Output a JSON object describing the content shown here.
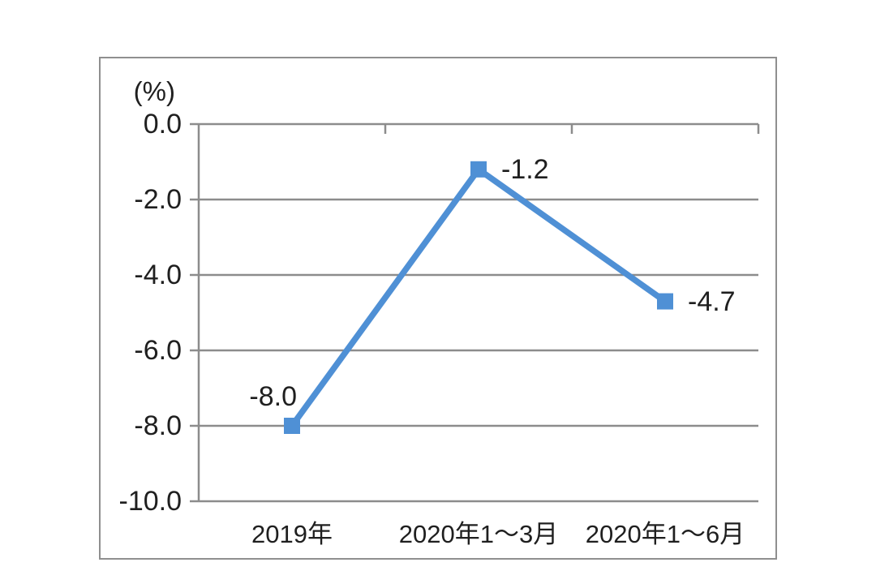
{
  "chart": {
    "colors": {
      "line": "#4f90d5",
      "marker": "#4f90d5",
      "grid": "#8c8c8c",
      "axis": "#8c8c8c",
      "border": "#8f8f8f",
      "text": "#1f1f1f",
      "background": "#ffffff"
    }
  },
  "chart_data": {
    "type": "line",
    "title": "",
    "unit_label": "(%)",
    "categories": [
      "2019年",
      "2020年1～3月",
      "2020年1～6月"
    ],
    "values": [
      -8.0,
      -1.2,
      -4.7
    ],
    "data_labels": [
      "-8.0",
      "-1.2",
      "-4.7"
    ],
    "data_label_positions": [
      "above-left",
      "right",
      "right"
    ],
    "yticks": [
      "0.0",
      "-2.0",
      "-4.0",
      "-6.0",
      "-8.0",
      "-10.0"
    ],
    "ylim": [
      -10.0,
      0.0
    ],
    "ytick_step": 2.0,
    "xlabel": "",
    "ylabel": "(%)",
    "grid": true,
    "legend": "none",
    "marker": "square"
  }
}
